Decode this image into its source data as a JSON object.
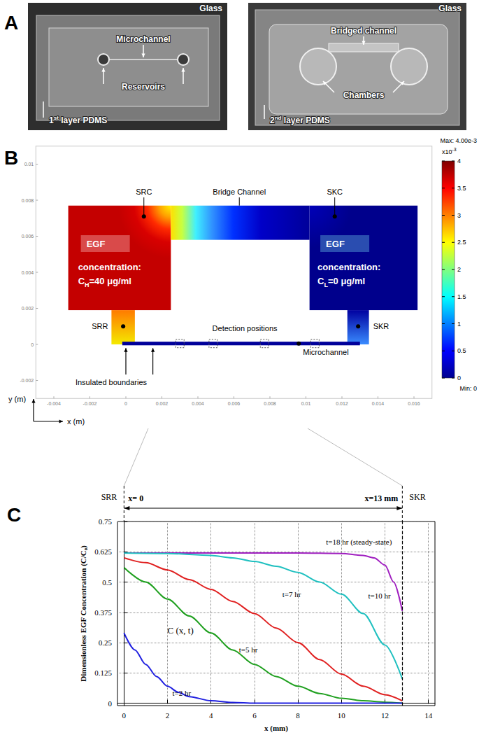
{
  "panel_labels": [
    "A",
    "B",
    "C"
  ],
  "panel_a": {
    "left": {
      "glass": "Glass",
      "microchannel": "Microchannel",
      "reservoirs": "Reservoirs",
      "layer": {
        "ordinal": "1",
        "suffix": "st",
        "rest": "layer PDMS"
      }
    },
    "right": {
      "glass": "Glass",
      "bridged": "Bridged channel",
      "chambers": "Chambers",
      "layer": {
        "ordinal": "2",
        "suffix": "nd",
        "rest": "layer PDMS"
      }
    }
  },
  "panel_b": {
    "xlabel": "x (m)",
    "ylabel": "y (m)",
    "xlim": [
      -0.005,
      0.017
    ],
    "xticks": [
      -0.004,
      -0.002,
      0,
      0.002,
      0.004,
      0.006,
      0.008,
      0.01,
      0.012,
      0.014,
      0.016
    ],
    "ylim": [
      -0.003,
      0.011
    ],
    "yticks": [
      -0.002,
      0,
      0.002,
      0.004,
      0.006,
      0.008,
      0.01
    ],
    "labels": {
      "src": "SRC",
      "bridge": "Bridge Channel",
      "skc": "SKC",
      "srr": "SRR",
      "skr": "SKR",
      "detection": "Detection positions",
      "insulated": "Insulated boundaries",
      "microchannel": "Microchannel"
    },
    "egf_high": {
      "tag": "EGF",
      "line": "concentration:",
      "symbol": "C",
      "subscript": "H",
      "value_text": "=40 μg/ml"
    },
    "egf_low": {
      "tag": "EGF",
      "line": "concentration:",
      "symbol": "C",
      "subscript": "L",
      "value_text": "=0 μg/ml"
    },
    "colorbar": {
      "range": [
        0,
        4
      ],
      "ticks": [
        0,
        0.5,
        1,
        1.5,
        2,
        2.5,
        3,
        3.5,
        4
      ],
      "multiplier": {
        "base": "x10",
        "exponent": "-3"
      },
      "max_label": "Max: 4.00e-3",
      "min_label": "Min: 0"
    }
  },
  "chart_data": {
    "type": "line",
    "xlabel": "x (mm)",
    "ylabel": "Dimensionless EGF Concentration (C/C₀)",
    "xlim": [
      -0.3,
      14.3
    ],
    "xticks": [
      0,
      2,
      4,
      6,
      8,
      10,
      12,
      14
    ],
    "ylim": [
      -0.01,
      0.75
    ],
    "yticks": [
      0,
      0.125,
      0.25,
      0.375,
      0.5,
      0.625,
      0.75
    ],
    "grid": true,
    "header": {
      "left": "SRR",
      "right": "SKR",
      "start": {
        "x": 0,
        "label": "x= 0"
      },
      "end": {
        "x": 12.8,
        "label": "x=13 mm"
      }
    },
    "annotations": [
      {
        "text": "C (x, t)",
        "x": 2,
        "y": 0.3
      }
    ],
    "series": [
      {
        "name": "t=18 hr (steady-state)",
        "color": "#a020c0",
        "x": [
          0,
          2,
          4,
          6,
          8,
          10,
          11,
          11.5,
          12,
          12.4,
          12.8
        ],
        "values": [
          0.62,
          0.62,
          0.62,
          0.62,
          0.62,
          0.618,
          0.61,
          0.6,
          0.57,
          0.5,
          0.38
        ]
      },
      {
        "name": "t=10 hr",
        "color": "#20c0c0",
        "x": [
          0,
          2,
          4,
          5,
          6,
          7,
          8,
          9,
          10,
          11,
          12,
          12.8
        ],
        "values": [
          0.62,
          0.618,
          0.61,
          0.6,
          0.585,
          0.565,
          0.54,
          0.5,
          0.45,
          0.37,
          0.24,
          0.1
        ]
      },
      {
        "name": "t=7 hr",
        "color": "#e02020",
        "x": [
          0,
          1,
          2,
          3,
          4,
          5,
          6,
          7,
          8,
          9,
          10,
          11,
          12,
          12.8
        ],
        "values": [
          0.6,
          0.58,
          0.55,
          0.51,
          0.47,
          0.42,
          0.37,
          0.31,
          0.25,
          0.18,
          0.12,
          0.07,
          0.035,
          0.01
        ]
      },
      {
        "name": "t=5 hr",
        "color": "#20a020",
        "x": [
          0,
          1,
          2,
          3,
          4,
          5,
          6,
          7,
          8,
          9,
          10,
          11,
          12,
          12.8
        ],
        "values": [
          0.56,
          0.5,
          0.43,
          0.36,
          0.29,
          0.22,
          0.16,
          0.11,
          0.07,
          0.04,
          0.02,
          0.01,
          0.004,
          0
        ]
      },
      {
        "name": "t=2 hr",
        "color": "#2020e0",
        "x": [
          0,
          0.5,
          1,
          1.5,
          2,
          2.5,
          3,
          4,
          5,
          6,
          8,
          10,
          12.8
        ],
        "values": [
          0.29,
          0.22,
          0.16,
          0.11,
          0.07,
          0.045,
          0.027,
          0.01,
          0.003,
          0,
          0,
          0,
          0
        ]
      }
    ]
  }
}
